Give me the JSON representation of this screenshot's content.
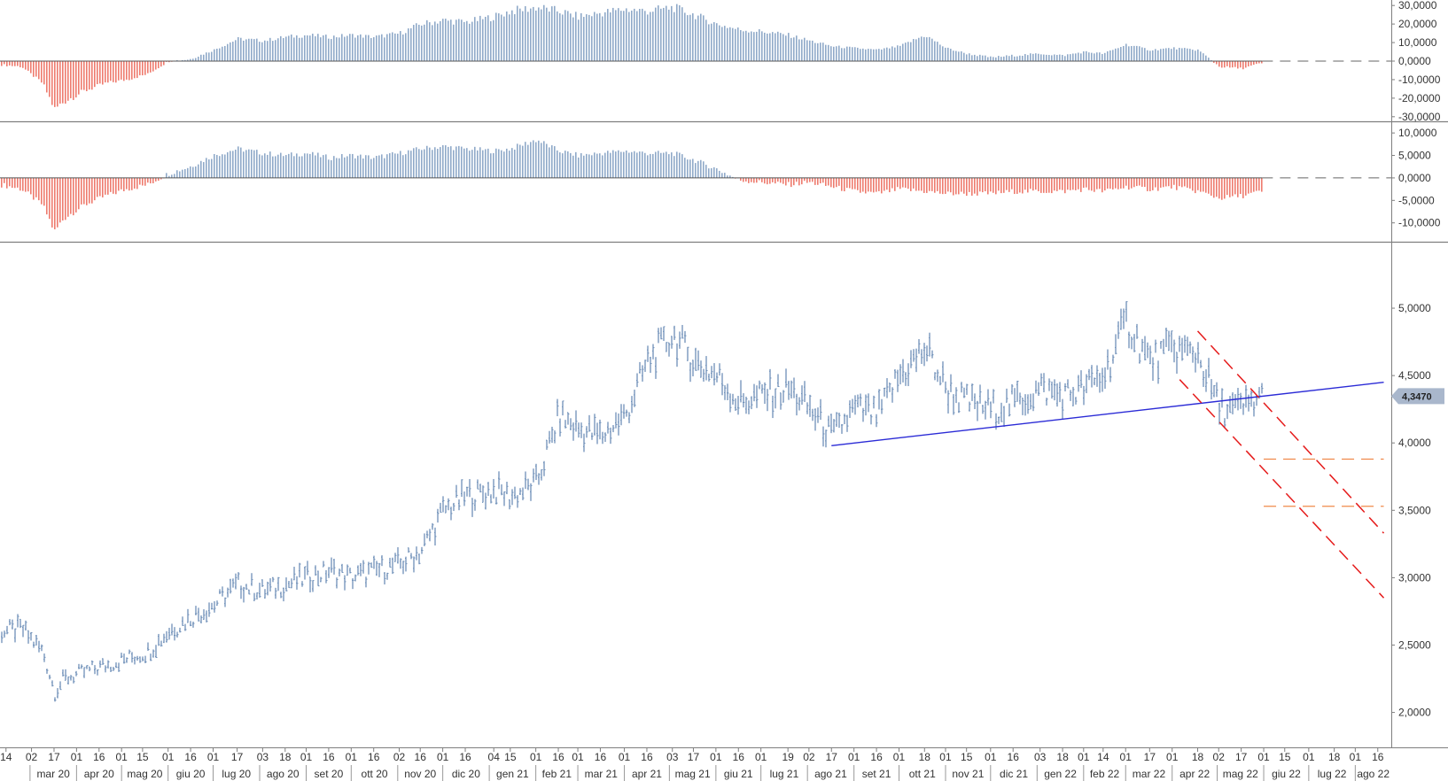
{
  "chart_data": {
    "type": "bar",
    "colors": {
      "bar_positive": "#8FA9C9",
      "bar_negative": "#EE7B6E",
      "price": "#6E8FB8",
      "trendline": "#2B2BD6",
      "channel": "#E51B1B",
      "target": "#F08A4B",
      "last_value_bg": "#A9B7CC",
      "frame": "#7F7F7F"
    },
    "panels": [
      {
        "id": "oscillator-1",
        "type": "bar",
        "ylim": [
          -32000,
          32000
        ],
        "y_ticks": [
          "30,0000",
          "20,0000",
          "10,0000",
          "0,0000",
          "-10,0000",
          "-20,0000",
          "-30,0000"
        ],
        "y_tick_values": [
          30000,
          20000,
          10000,
          0,
          -10000,
          -20000,
          -30000
        ],
        "x": [
          "2020-02-10",
          "2020-02-24",
          "2020-03-09",
          "2020-03-17",
          "2020-03-23",
          "2020-04-06",
          "2020-04-20",
          "2020-05-04",
          "2020-05-18",
          "2020-06-01",
          "2020-06-15",
          "2020-07-01",
          "2020-07-17",
          "2020-08-03",
          "2020-08-18",
          "2020-09-01",
          "2020-09-16",
          "2020-10-01",
          "2020-10-16",
          "2020-11-02",
          "2020-11-16",
          "2020-12-01",
          "2020-12-16",
          "2021-01-04",
          "2021-01-15",
          "2021-02-01",
          "2021-02-16",
          "2021-03-01",
          "2021-03-16",
          "2021-04-01",
          "2021-04-16",
          "2021-05-03",
          "2021-05-17",
          "2021-06-01",
          "2021-06-16",
          "2021-07-01",
          "2021-07-19",
          "2021-08-02",
          "2021-08-17",
          "2021-09-01",
          "2021-09-16",
          "2021-10-01",
          "2021-10-18",
          "2021-11-01",
          "2021-11-15",
          "2021-12-01",
          "2021-12-16",
          "2022-01-03",
          "2022-01-18",
          "2022-02-01",
          "2022-02-14",
          "2022-03-01",
          "2022-03-17",
          "2022-04-01",
          "2022-04-18",
          "2022-05-02",
          "2022-05-17",
          "2022-05-31"
        ],
        "values": [
          -2000,
          -3000,
          -12000,
          -26000,
          -22000,
          -16000,
          -12000,
          -10000,
          -7000,
          0,
          1000,
          6000,
          12000,
          11000,
          13000,
          14000,
          13000,
          14000,
          13000,
          15000,
          20000,
          22000,
          21000,
          24000,
          27000,
          29000,
          27000,
          24000,
          26000,
          28000,
          27000,
          29000,
          25000,
          20000,
          17000,
          16000,
          14000,
          11000,
          8000,
          7000,
          6000,
          8000,
          14000,
          7000,
          4000,
          2000,
          3000,
          4000,
          3000,
          5000,
          4000,
          9000,
          6000,
          7000,
          6000,
          -3000,
          -4000,
          -1000
        ]
      },
      {
        "id": "oscillator-2",
        "type": "bar",
        "ylim": [
          -14000,
          12000
        ],
        "y_ticks": [
          "10,0000",
          "5,0000",
          "0,0000",
          "-5,0000",
          "-10,0000"
        ],
        "y_tick_values": [
          10000,
          5000,
          0,
          -5000,
          -10000
        ],
        "x": [
          "2020-02-10",
          "2020-02-24",
          "2020-03-09",
          "2020-03-17",
          "2020-03-23",
          "2020-04-06",
          "2020-04-20",
          "2020-05-04",
          "2020-05-18",
          "2020-06-01",
          "2020-06-15",
          "2020-07-01",
          "2020-07-17",
          "2020-08-03",
          "2020-08-18",
          "2020-09-01",
          "2020-09-16",
          "2020-10-01",
          "2020-10-16",
          "2020-11-02",
          "2020-11-16",
          "2020-12-01",
          "2020-12-16",
          "2021-01-04",
          "2021-01-15",
          "2021-02-01",
          "2021-02-16",
          "2021-03-01",
          "2021-03-16",
          "2021-04-01",
          "2021-04-16",
          "2021-05-03",
          "2021-05-17",
          "2021-06-01",
          "2021-06-16",
          "2021-07-01",
          "2021-07-19",
          "2021-08-02",
          "2021-08-17",
          "2021-09-01",
          "2021-09-16",
          "2021-10-01",
          "2021-10-18",
          "2021-11-01",
          "2021-11-15",
          "2021-12-01",
          "2021-12-16",
          "2022-01-03",
          "2022-01-18",
          "2022-02-01",
          "2022-02-14",
          "2022-03-01",
          "2022-03-17",
          "2022-04-01",
          "2022-04-18",
          "2022-05-02",
          "2022-05-17",
          "2022-05-31"
        ],
        "values": [
          -1500,
          -2500,
          -6000,
          -12000,
          -9000,
          -6000,
          -4000,
          -2500,
          -1500,
          1000,
          2500,
          5000,
          6500,
          5500,
          5000,
          5500,
          4500,
          5000,
          4500,
          5500,
          6500,
          7000,
          6500,
          6000,
          6500,
          8500,
          6000,
          5000,
          5500,
          6000,
          5500,
          5500,
          4000,
          2000,
          -500,
          -1000,
          -1500,
          -1000,
          -2000,
          -3000,
          -3500,
          -2500,
          -3000,
          -3500,
          -3500,
          -3500,
          -3000,
          -3000,
          -3000,
          -2500,
          -3000,
          -2000,
          -2500,
          -2000,
          -3000,
          -4500,
          -4000,
          -3000
        ]
      },
      {
        "id": "price",
        "type": "ohlc",
        "ylim": [
          1800,
          5250
        ],
        "y_ticks": [
          "5,0000",
          "4,5000",
          "4,0000",
          "3,5000",
          "3,0000",
          "2,5000",
          "2,0000"
        ],
        "y_tick_values": [
          5000,
          4500,
          4000,
          3500,
          3000,
          2500,
          2000
        ],
        "last_value": "4,3470",
        "last_value_num": 4347,
        "x": [
          "2020-02-10",
          "2020-02-24",
          "2020-03-09",
          "2020-03-17",
          "2020-03-23",
          "2020-04-06",
          "2020-04-20",
          "2020-05-04",
          "2020-05-18",
          "2020-06-01",
          "2020-06-15",
          "2020-07-01",
          "2020-07-17",
          "2020-08-03",
          "2020-08-18",
          "2020-09-01",
          "2020-09-16",
          "2020-10-01",
          "2020-10-16",
          "2020-11-02",
          "2020-11-16",
          "2020-12-01",
          "2020-12-16",
          "2021-01-04",
          "2021-01-15",
          "2021-02-01",
          "2021-02-16",
          "2021-03-01",
          "2021-03-16",
          "2021-04-01",
          "2021-04-16",
          "2021-05-03",
          "2021-05-17",
          "2021-06-01",
          "2021-06-16",
          "2021-07-01",
          "2021-07-19",
          "2021-08-02",
          "2021-08-17",
          "2021-09-01",
          "2021-09-16",
          "2021-10-01",
          "2021-10-18",
          "2021-11-01",
          "2021-11-15",
          "2021-12-01",
          "2021-12-16",
          "2022-01-03",
          "2022-01-18",
          "2022-02-01",
          "2022-02-14",
          "2022-03-01",
          "2022-03-17",
          "2022-04-01",
          "2022-04-18",
          "2022-05-02",
          "2022-05-17",
          "2022-05-31"
        ],
        "close": [
          2600,
          2620,
          2450,
          2150,
          2250,
          2300,
          2350,
          2400,
          2450,
          2600,
          2700,
          2800,
          2950,
          2900,
          2950,
          3000,
          3050,
          3000,
          3050,
          3100,
          3200,
          3500,
          3600,
          3650,
          3600,
          3700,
          4200,
          4100,
          4050,
          4200,
          4600,
          4800,
          4600,
          4500,
          4300,
          4350,
          4400,
          4250,
          4050,
          4250,
          4200,
          4500,
          4700,
          4400,
          4300,
          4250,
          4300,
          4400,
          4350,
          4400,
          4500,
          4900,
          4600,
          4700,
          4650,
          4250,
          4250,
          4347
        ],
        "trendline": {
          "from": {
            "x": "2021-08-17",
            "y": 3980
          },
          "to": {
            "x": "2022-08-20",
            "y": 4450
          }
        },
        "channel_upper": {
          "from": {
            "x": "2022-04-18",
            "y": 4830
          },
          "to": {
            "x": "2022-08-20",
            "y": 3330
          }
        },
        "channel_lower": {
          "from": {
            "x": "2022-04-06",
            "y": 4470
          },
          "to": {
            "x": "2022-08-20",
            "y": 2850
          }
        },
        "targets": [
          {
            "x_from": "2022-06-01",
            "x_to": "2022-08-20",
            "y": 3880
          },
          {
            "x_from": "2022-06-01",
            "x_to": "2022-08-20",
            "y": 3530
          }
        ]
      }
    ],
    "x_axis": {
      "day_ticks": [
        {
          "label": "14",
          "x": "2020-02-14"
        },
        {
          "label": "02",
          "x": "2020-03-02"
        },
        {
          "label": "17",
          "x": "2020-03-17"
        },
        {
          "label": "01",
          "x": "2020-04-01"
        },
        {
          "label": "16",
          "x": "2020-04-16"
        },
        {
          "label": "01",
          "x": "2020-05-01"
        },
        {
          "label": "15",
          "x": "2020-05-15"
        },
        {
          "label": "01",
          "x": "2020-06-01"
        },
        {
          "label": "16",
          "x": "2020-06-16"
        },
        {
          "label": "01",
          "x": "2020-07-01"
        },
        {
          "label": "17",
          "x": "2020-07-17"
        },
        {
          "label": "03",
          "x": "2020-08-03"
        },
        {
          "label": "18",
          "x": "2020-08-18"
        },
        {
          "label": "01",
          "x": "2020-09-01"
        },
        {
          "label": "16",
          "x": "2020-09-16"
        },
        {
          "label": "01",
          "x": "2020-10-01"
        },
        {
          "label": "16",
          "x": "2020-10-16"
        },
        {
          "label": "02",
          "x": "2020-11-02"
        },
        {
          "label": "16",
          "x": "2020-11-16"
        },
        {
          "label": "01",
          "x": "2020-12-01"
        },
        {
          "label": "16",
          "x": "2020-12-16"
        },
        {
          "label": "04",
          "x": "2021-01-04"
        },
        {
          "label": "15",
          "x": "2021-01-15"
        },
        {
          "label": "01",
          "x": "2021-02-01"
        },
        {
          "label": "16",
          "x": "2021-02-16"
        },
        {
          "label": "01",
          "x": "2021-03-01"
        },
        {
          "label": "16",
          "x": "2021-03-16"
        },
        {
          "label": "01",
          "x": "2021-04-01"
        },
        {
          "label": "16",
          "x": "2021-04-16"
        },
        {
          "label": "03",
          "x": "2021-05-03"
        },
        {
          "label": "17",
          "x": "2021-05-17"
        },
        {
          "label": "01",
          "x": "2021-06-01"
        },
        {
          "label": "16",
          "x": "2021-06-16"
        },
        {
          "label": "01",
          "x": "2021-07-01"
        },
        {
          "label": "19",
          "x": "2021-07-19"
        },
        {
          "label": "02",
          "x": "2021-08-02"
        },
        {
          "label": "17",
          "x": "2021-08-17"
        },
        {
          "label": "01",
          "x": "2021-09-01"
        },
        {
          "label": "16",
          "x": "2021-09-16"
        },
        {
          "label": "01",
          "x": "2021-10-01"
        },
        {
          "label": "18",
          "x": "2021-10-18"
        },
        {
          "label": "01",
          "x": "2021-11-01"
        },
        {
          "label": "15",
          "x": "2021-11-15"
        },
        {
          "label": "01",
          "x": "2021-12-01"
        },
        {
          "label": "16",
          "x": "2021-12-16"
        },
        {
          "label": "03",
          "x": "2022-01-03"
        },
        {
          "label": "18",
          "x": "2022-01-18"
        },
        {
          "label": "01",
          "x": "2022-02-01"
        },
        {
          "label": "14",
          "x": "2022-02-14"
        },
        {
          "label": "01",
          "x": "2022-03-01"
        },
        {
          "label": "17",
          "x": "2022-03-17"
        },
        {
          "label": "01",
          "x": "2022-04-01"
        },
        {
          "label": "18",
          "x": "2022-04-18"
        },
        {
          "label": "02",
          "x": "2022-05-02"
        },
        {
          "label": "17",
          "x": "2022-05-17"
        },
        {
          "label": "01",
          "x": "2022-06-01"
        },
        {
          "label": "15",
          "x": "2022-06-15"
        },
        {
          "label": "01",
          "x": "2022-07-01"
        },
        {
          "label": "18",
          "x": "2022-07-18"
        },
        {
          "label": "01",
          "x": "2022-08-01"
        },
        {
          "label": "16",
          "x": "2022-08-16"
        }
      ],
      "month_labels": [
        {
          "label": "mar 20",
          "x": "2020-03-01"
        },
        {
          "label": "apr 20",
          "x": "2020-04-01"
        },
        {
          "label": "mag 20",
          "x": "2020-05-01"
        },
        {
          "label": "giu 20",
          "x": "2020-06-01"
        },
        {
          "label": "lug 20",
          "x": "2020-07-01"
        },
        {
          "label": "ago 20",
          "x": "2020-08-01"
        },
        {
          "label": "set 20",
          "x": "2020-09-01"
        },
        {
          "label": "ott 20",
          "x": "2020-10-01"
        },
        {
          "label": "nov 20",
          "x": "2020-11-01"
        },
        {
          "label": "dic 20",
          "x": "2020-12-01"
        },
        {
          "label": "gen 21",
          "x": "2021-01-01"
        },
        {
          "label": "feb 21",
          "x": "2021-02-01"
        },
        {
          "label": "mar 21",
          "x": "2021-03-01"
        },
        {
          "label": "apr 21",
          "x": "2021-04-01"
        },
        {
          "label": "mag 21",
          "x": "2021-05-01"
        },
        {
          "label": "giu 21",
          "x": "2021-06-01"
        },
        {
          "label": "lug 21",
          "x": "2021-07-01"
        },
        {
          "label": "ago 21",
          "x": "2021-08-01"
        },
        {
          "label": "set 21",
          "x": "2021-09-01"
        },
        {
          "label": "ott 21",
          "x": "2021-10-01"
        },
        {
          "label": "nov 21",
          "x": "2021-11-01"
        },
        {
          "label": "dic 21",
          "x": "2021-12-01"
        },
        {
          "label": "gen 22",
          "x": "2022-01-01"
        },
        {
          "label": "feb 22",
          "x": "2022-02-01"
        },
        {
          "label": "mar 22",
          "x": "2022-03-01"
        },
        {
          "label": "apr 22",
          "x": "2022-04-01"
        },
        {
          "label": "mag 22",
          "x": "2022-05-01"
        },
        {
          "label": "giu 22",
          "x": "2022-06-01"
        },
        {
          "label": "lug 22",
          "x": "2022-07-01"
        },
        {
          "label": "ago 22",
          "x": "2022-08-01"
        }
      ],
      "start": "2020-02-10",
      "end": "2022-08-25"
    }
  }
}
